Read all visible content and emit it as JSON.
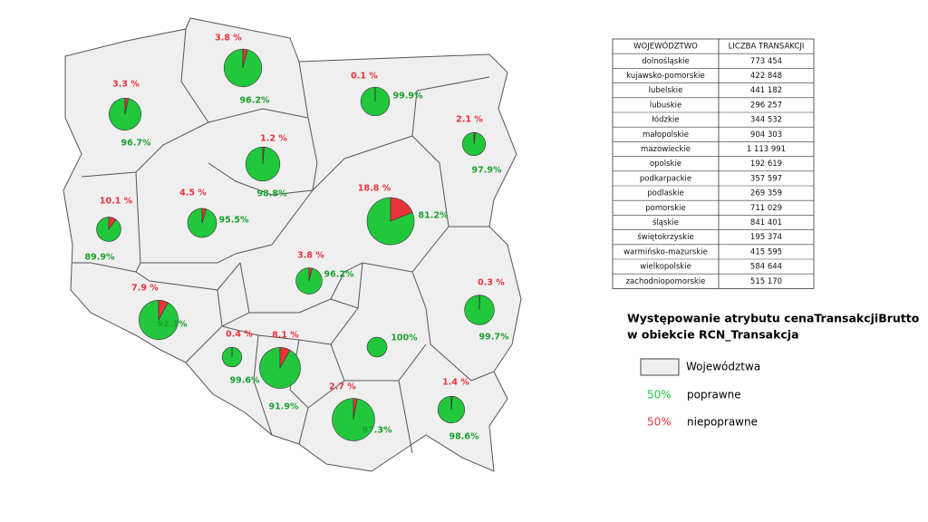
{
  "map": {
    "pies": [
      {
        "incorrect": 7.9,
        "incorrect_label": "7.9 %",
        "correct": 92.1,
        "correct_label": "92.1%"
      },
      {
        "incorrect": 4.5,
        "incorrect_label": "4.5 %",
        "correct": 95.5,
        "correct_label": "95.5%"
      },
      {
        "incorrect": 0.3,
        "incorrect_label": "0.3 %",
        "correct": 99.7,
        "correct_label": "99.7%"
      },
      {
        "incorrect": 10.1,
        "incorrect_label": "10.1 %",
        "correct": 89.9,
        "correct_label": "89.9%"
      },
      {
        "incorrect": 3.8,
        "incorrect_label": "3.8 %",
        "correct": 96.2,
        "correct_label": "96.2%"
      },
      {
        "incorrect": 2.7,
        "incorrect_label": "2.7 %",
        "correct": 97.3,
        "correct_label": "97.3%"
      },
      {
        "incorrect": 18.8,
        "incorrect_label": "18.8 %",
        "correct": 81.2,
        "correct_label": "81.2%"
      },
      {
        "incorrect": 0.4,
        "incorrect_label": "0.4 %",
        "correct": 99.6,
        "correct_label": "99.6%"
      },
      {
        "incorrect": 1.4,
        "incorrect_label": "1.4 %",
        "correct": 98.6,
        "correct_label": "98.6%"
      },
      {
        "incorrect": 2.1,
        "incorrect_label": "2.1 %",
        "correct": 97.9,
        "correct_label": "97.9%"
      },
      {
        "incorrect": 3.8,
        "incorrect_label": "3.8 %",
        "correct": 96.2,
        "correct_label": "96.2%"
      },
      {
        "incorrect": 8.1,
        "incorrect_label": "8.1 %",
        "correct": 91.9,
        "correct_label": "91.9%"
      },
      {
        "incorrect": 0,
        "correct": 100,
        "correct_label": "100%"
      },
      {
        "incorrect": 0.1,
        "incorrect_label": "0.1 %",
        "correct": 99.9,
        "correct_label": "99.9%"
      },
      {
        "incorrect": 1.2,
        "incorrect_label": "1.2 %",
        "correct": 98.8,
        "correct_label": "98.8%"
      },
      {
        "incorrect": 3.3,
        "incorrect_label": "3.3 %",
        "correct": 96.7,
        "correct_label": "96.7%"
      }
    ]
  },
  "table": {
    "header": [
      "WOJEWÓDZTWO",
      "LICZBA TRANSAKCJI"
    ],
    "rows": [
      [
        "dolnośląskie",
        {
          "value": 773454,
          "label": "773 454"
        }
      ],
      [
        "kujawsko-pomorskie",
        {
          "value": 422848,
          "label": "422 848"
        }
      ],
      [
        "lubelskie",
        {
          "value": 441182,
          "label": "441 182"
        }
      ],
      [
        "lubuskie",
        {
          "value": 296257,
          "label": "296 257"
        }
      ],
      [
        "łódzkie",
        {
          "value": 344532,
          "label": "344 532"
        }
      ],
      [
        "małopolskie",
        {
          "value": 904303,
          "label": "904 303"
        }
      ],
      [
        "mazowieckie",
        {
          "value": 1113991,
          "label": "1 113 991"
        }
      ],
      [
        "opolskie",
        {
          "value": 192619,
          "label": "192 619"
        }
      ],
      [
        "podkarpackie",
        {
          "value": 357597,
          "label": "357 597"
        }
      ],
      [
        "podlaskie",
        {
          "value": 269359,
          "label": "269 359"
        }
      ],
      [
        "pomorskie",
        {
          "value": 711029,
          "label": "711 029"
        }
      ],
      [
        "śląskie",
        {
          "value": 841401,
          "label": "841 401"
        }
      ],
      [
        "świętokrzyskie",
        {
          "value": 195374,
          "label": "195 374"
        }
      ],
      [
        "warmińsko-mazurskie",
        {
          "value": 415595,
          "label": "415 595"
        }
      ],
      [
        "wielkopolskie",
        {
          "value": 584644,
          "label": "584 644"
        }
      ],
      [
        "zachodniopomorskie",
        {
          "value": 515170,
          "label": "515 170"
        }
      ]
    ]
  },
  "legend": {
    "title": [
      "Występowanie atrybutu cenaTransakcjiBrutto",
      "w obiekcie RCN_Transakcja"
    ],
    "region_label": "Województwa",
    "items": [
      {
        "sample": "50%",
        "label": "poprawne",
        "color": "#22c83c"
      },
      {
        "sample": "50%",
        "label": "niepoprawne",
        "color": "#e8343c"
      }
    ]
  }
}
